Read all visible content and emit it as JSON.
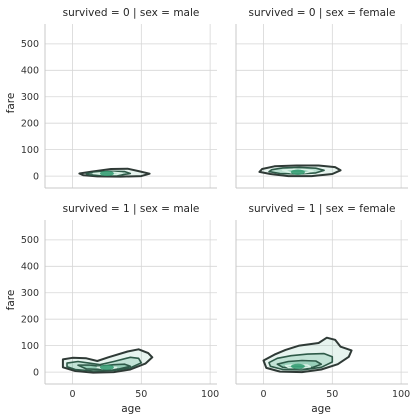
{
  "chart_data": {
    "type": "contour",
    "facet_layout": {
      "rows": 2,
      "cols": 2
    },
    "xlim": [
      -20,
      105
    ],
    "ylim": [
      -45,
      575
    ],
    "x_ticks": [
      0,
      50,
      100
    ],
    "y_ticks": [
      0,
      100,
      200,
      300,
      400,
      500
    ],
    "xlabel": "age",
    "ylabel": "fare",
    "grid": true,
    "colors": {
      "contour_dark": "#2f3a36",
      "contour_fill": "#3aa57a",
      "grid": "#d6d6d6",
      "spine": "#c8c8c8"
    },
    "facets": [
      {
        "title": "survived = 0 | sex = male",
        "density_peak": {
          "age": 25,
          "fare": 10
        },
        "contours": [
          [
            [
              5,
              10
            ],
            [
              14,
              17
            ],
            [
              28,
              27
            ],
            [
              40,
              28
            ],
            [
              48,
              19
            ],
            [
              56,
              9
            ],
            [
              50,
              0
            ],
            [
              35,
              -2
            ],
            [
              18,
              -1
            ],
            [
              8,
              3
            ]
          ],
          [
            [
              10,
              10
            ],
            [
              18,
              15
            ],
            [
              28,
              18
            ],
            [
              38,
              17
            ],
            [
              42,
              10
            ],
            [
              35,
              4
            ],
            [
              22,
              3
            ],
            [
              12,
              5
            ]
          ],
          [
            [
              15,
              10
            ],
            [
              22,
              13
            ],
            [
              30,
              14
            ],
            [
              36,
              11
            ],
            [
              32,
              6
            ],
            [
              22,
              6
            ]
          ]
        ]
      },
      {
        "title": "survived = 0 | sex = female",
        "density_peak": {
          "age": 25,
          "fare": 15
        },
        "contours": [
          [
            [
              -1,
              27
            ],
            [
              8,
              37
            ],
            [
              24,
              40
            ],
            [
              40,
              40
            ],
            [
              52,
              34
            ],
            [
              56,
              22
            ],
            [
              50,
              8
            ],
            [
              35,
              0
            ],
            [
              18,
              0
            ],
            [
              5,
              8
            ],
            [
              -3,
              16
            ]
          ],
          [
            [
              6,
              24
            ],
            [
              14,
              31
            ],
            [
              26,
              33
            ],
            [
              38,
              30
            ],
            [
              44,
              22
            ],
            [
              38,
              12
            ],
            [
              25,
              8
            ],
            [
              12,
              10
            ],
            [
              4,
              17
            ]
          ],
          [
            [
              14,
              22
            ],
            [
              22,
              26
            ],
            [
              30,
              25
            ],
            [
              36,
              19
            ],
            [
              30,
              13
            ],
            [
              20,
              13
            ]
          ]
        ]
      },
      {
        "title": "survived = 1 | sex = male",
        "density_peak": {
          "age": 25,
          "fare": 18
        },
        "contours": [
          [
            [
              -7,
              48
            ],
            [
              0,
              54
            ],
            [
              10,
              52
            ],
            [
              18,
              42
            ],
            [
              26,
              56
            ],
            [
              40,
              78
            ],
            [
              48,
              86
            ],
            [
              55,
              72
            ],
            [
              58,
              56
            ],
            [
              53,
              32
            ],
            [
              42,
              10
            ],
            [
              30,
              0
            ],
            [
              15,
              -2
            ],
            [
              2,
              4
            ],
            [
              -7,
              18
            ]
          ],
          [
            [
              -4,
              34
            ],
            [
              4,
              40
            ],
            [
              12,
              34
            ],
            [
              20,
              28
            ],
            [
              30,
              40
            ],
            [
              42,
              56
            ],
            [
              48,
              52
            ],
            [
              50,
              35
            ],
            [
              42,
              16
            ],
            [
              30,
              6
            ],
            [
              15,
              4
            ],
            [
              2,
              10
            ],
            [
              -4,
              20
            ]
          ],
          [
            [
              4,
              26
            ],
            [
              12,
              27
            ],
            [
              20,
              22
            ],
            [
              30,
              28
            ],
            [
              38,
              30
            ],
            [
              42,
              22
            ],
            [
              34,
              12
            ],
            [
              22,
              10
            ],
            [
              10,
              12
            ]
          ],
          [
            [
              18,
              18
            ],
            [
              26,
              20
            ],
            [
              32,
              17
            ],
            [
              28,
              13
            ],
            [
              22,
              13
            ]
          ]
        ]
      },
      {
        "title": "survived = 1 | sex = female",
        "density_peak": {
          "age": 25,
          "fare": 22
        },
        "contours": [
          [
            [
              0,
              44
            ],
            [
              8,
              66
            ],
            [
              16,
              84
            ],
            [
              26,
              100
            ],
            [
              40,
              110
            ],
            [
              46,
              130
            ],
            [
              52,
              122
            ],
            [
              56,
              96
            ],
            [
              64,
              82
            ],
            [
              62,
              58
            ],
            [
              54,
              30
            ],
            [
              42,
              10
            ],
            [
              28,
              0
            ],
            [
              12,
              2
            ],
            [
              2,
              16
            ]
          ],
          [
            [
              4,
              36
            ],
            [
              10,
              52
            ],
            [
              20,
              62
            ],
            [
              32,
              68
            ],
            [
              44,
              70
            ],
            [
              50,
              58
            ],
            [
              50,
              38
            ],
            [
              42,
              18
            ],
            [
              28,
              8
            ],
            [
              14,
              10
            ],
            [
              5,
              22
            ]
          ],
          [
            [
              10,
              30
            ],
            [
              18,
              40
            ],
            [
              28,
              44
            ],
            [
              38,
              42
            ],
            [
              42,
              30
            ],
            [
              36,
              18
            ],
            [
              24,
              14
            ],
            [
              14,
              18
            ]
          ],
          [
            [
              16,
              24
            ],
            [
              24,
              28
            ],
            [
              32,
              26
            ],
            [
              34,
              20
            ],
            [
              26,
              16
            ],
            [
              18,
              18
            ]
          ]
        ]
      }
    ]
  }
}
